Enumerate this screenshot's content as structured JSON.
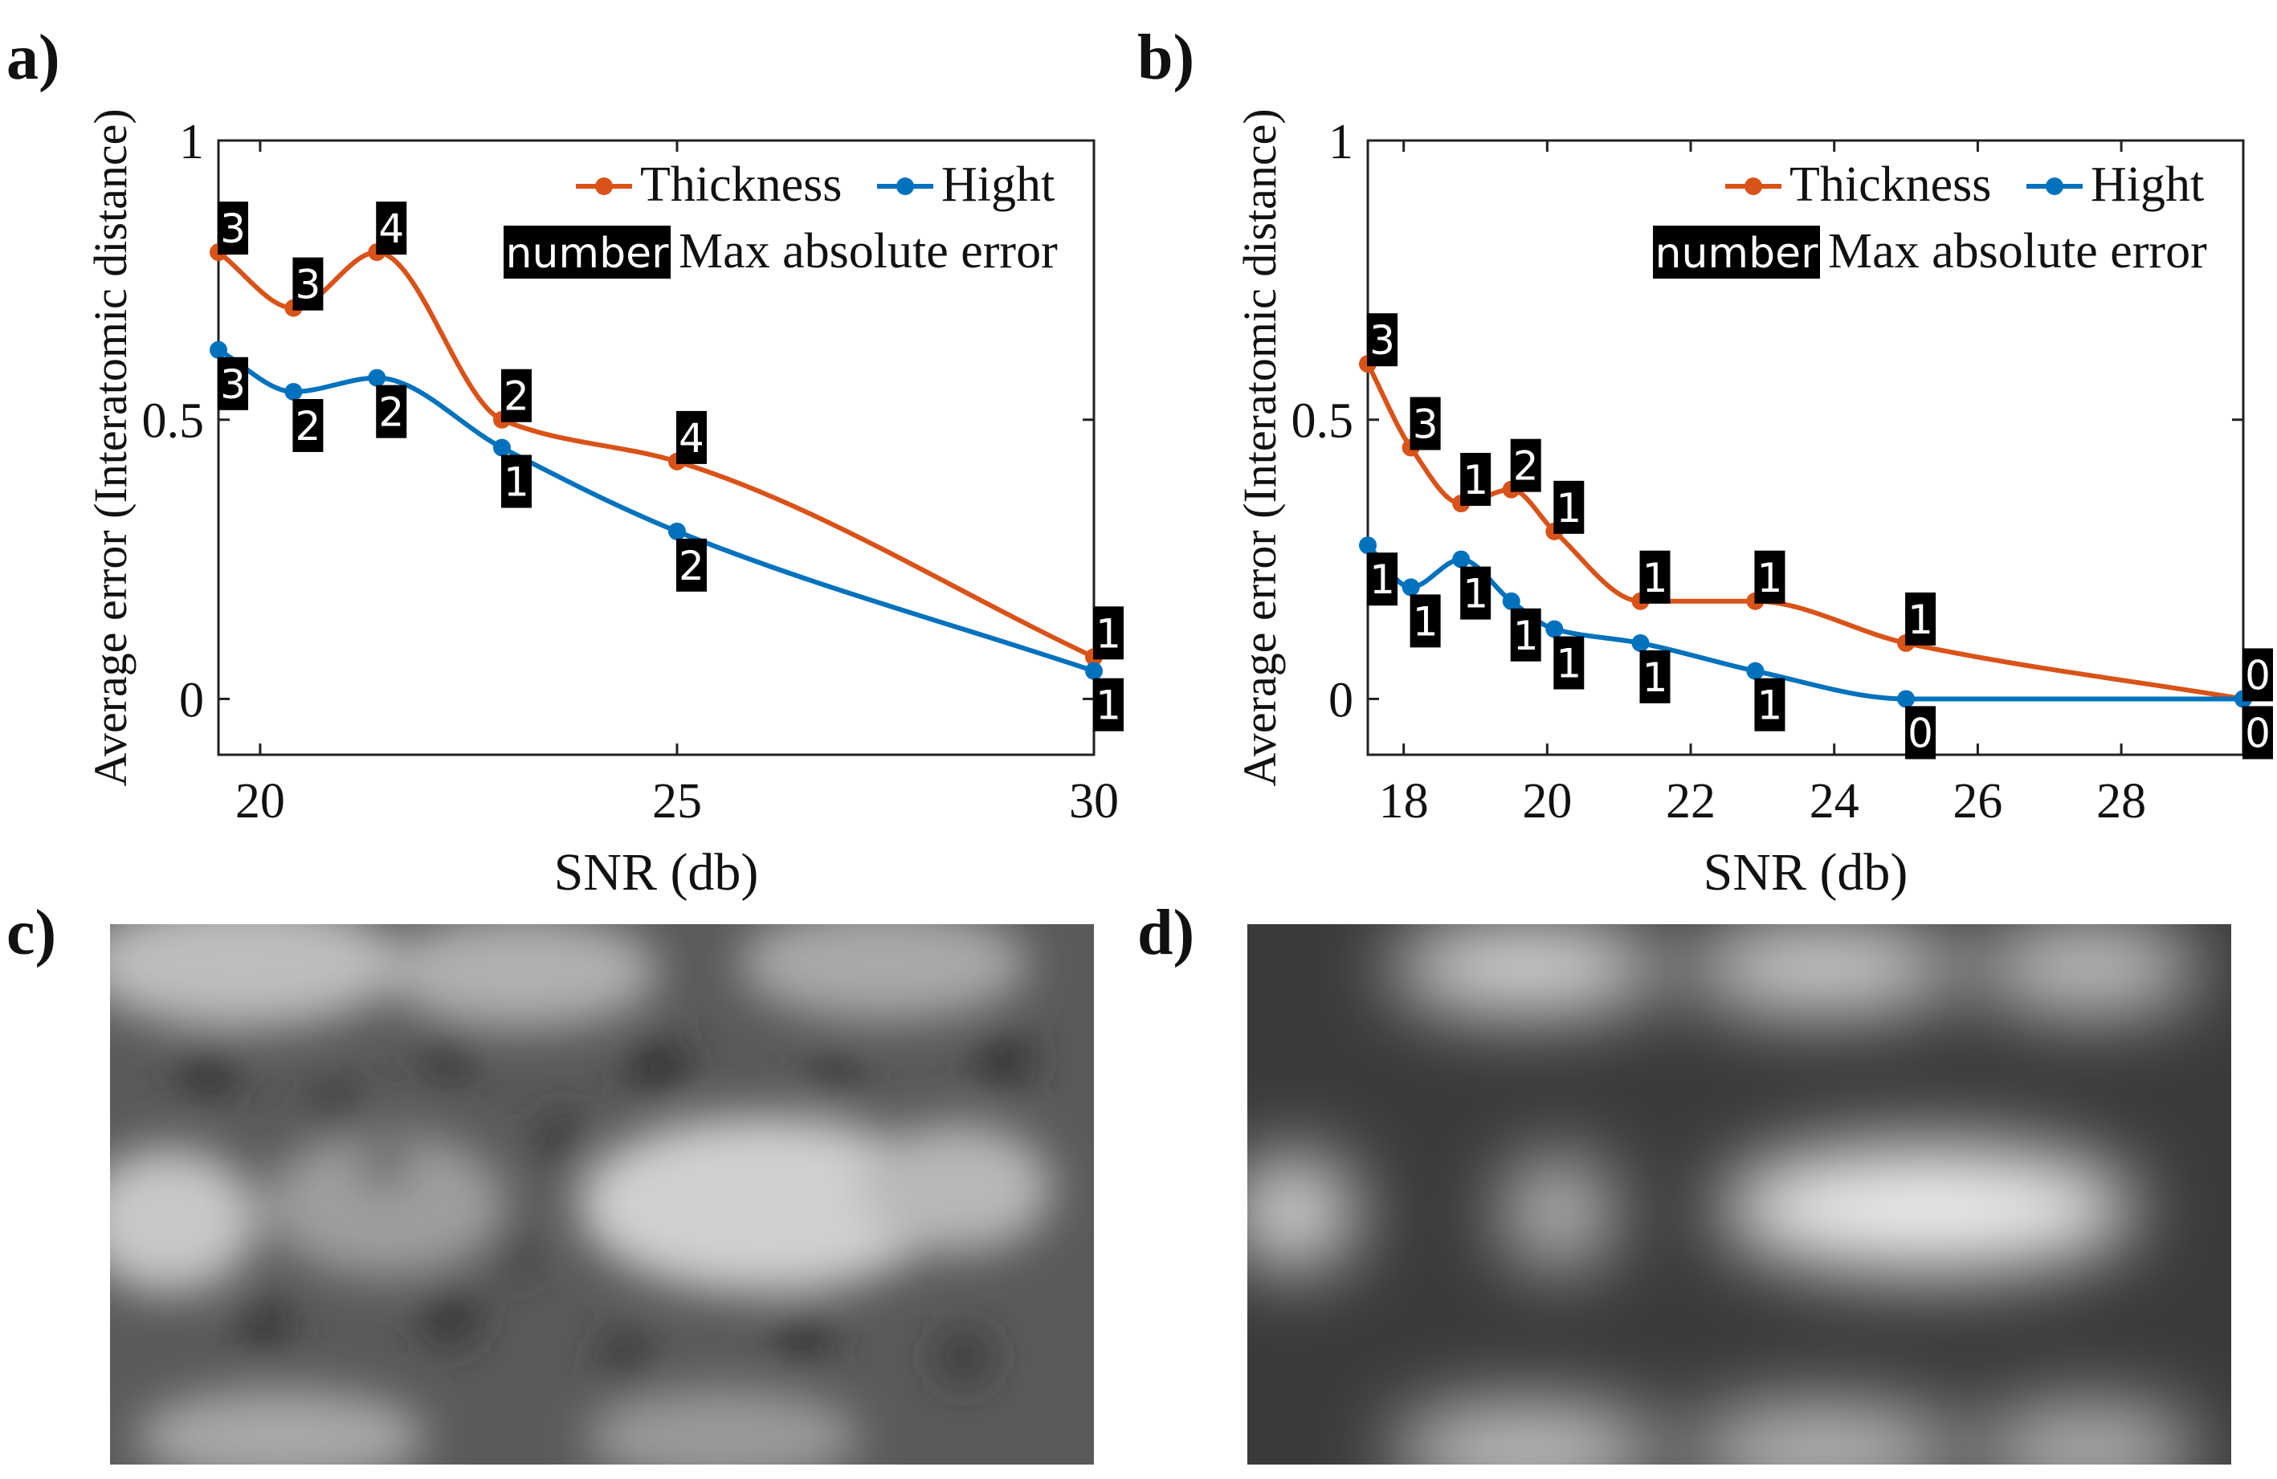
{
  "panel_labels": [
    "a)",
    "b)",
    "c)",
    "d)"
  ],
  "colors": {
    "thickness": "#D95319",
    "hight": "#0072BD",
    "badge_bg": "#000000",
    "badge_fg": "#ffffff",
    "axis": "#222222"
  },
  "chart_data": [
    {
      "type": "line",
      "panel": "a)",
      "xlabel": "SNR (db)",
      "ylabel": "Average error (Interatomic distance)",
      "xlim": [
        19.5,
        30
      ],
      "ylim": [
        -0.1,
        1
      ],
      "xticks": [
        20,
        25,
        30
      ],
      "xtick_labels": [
        "20",
        "25",
        "30"
      ],
      "yticks": [
        0,
        0.5,
        1
      ],
      "ytick_labels": [
        "0",
        "0.5",
        "1"
      ],
      "legend": {
        "placement": "top-right",
        "series": [
          "Thickness",
          "Hight"
        ],
        "badge_label": "number",
        "badge_text": "Max absolute error"
      },
      "series": [
        {
          "name": "Thickness",
          "color": "#D95319",
          "x": [
            19.5,
            20.4,
            21.4,
            22.9,
            25.0,
            30.0
          ],
          "y": [
            0.8,
            0.7,
            0.8,
            0.5,
            0.425,
            0.075
          ],
          "labels": [
            "3",
            "3",
            "4",
            "2",
            "4",
            "1"
          ]
        },
        {
          "name": "Hight",
          "color": "#0072BD",
          "x": [
            19.5,
            20.4,
            21.4,
            22.9,
            25.0,
            30.0
          ],
          "y": [
            0.625,
            0.55,
            0.575,
            0.45,
            0.3,
            0.05
          ],
          "labels": [
            "3",
            "2",
            "2",
            "1",
            "2",
            "1"
          ]
        }
      ]
    },
    {
      "type": "line",
      "panel": "b)",
      "xlabel": "SNR (db)",
      "ylabel": "Average error (Interatomic distance)",
      "xlim": [
        17.5,
        29.7
      ],
      "ylim": [
        -0.1,
        1
      ],
      "xticks": [
        18,
        20,
        22,
        24,
        26,
        28
      ],
      "xtick_labels": [
        "18",
        "20",
        "22",
        "24",
        "26",
        "28"
      ],
      "yticks": [
        0,
        0.5,
        1
      ],
      "ytick_labels": [
        "0",
        "0.5",
        "1"
      ],
      "legend": {
        "placement": "top-right",
        "series": [
          "Thickness",
          "Hight"
        ],
        "badge_label": "number",
        "badge_text": "Max absolute error"
      },
      "series": [
        {
          "name": "Thickness",
          "color": "#D95319",
          "x": [
            17.5,
            18.1,
            18.8,
            19.5,
            20.1,
            21.3,
            22.9,
            25.0,
            29.7
          ],
          "y": [
            0.6,
            0.45,
            0.35,
            0.375,
            0.3,
            0.175,
            0.175,
            0.1,
            0.0
          ],
          "labels": [
            "3",
            "3",
            "1",
            "2",
            "1",
            "1",
            "1",
            "1",
            "0"
          ]
        },
        {
          "name": "Hight",
          "color": "#0072BD",
          "x": [
            17.5,
            18.1,
            18.8,
            19.5,
            20.1,
            21.3,
            22.9,
            25.0,
            29.7
          ],
          "y": [
            0.275,
            0.2,
            0.25,
            0.175,
            0.125,
            0.1,
            0.05,
            0.0,
            0.0
          ],
          "labels": [
            "1",
            "1",
            "1",
            "1",
            "1",
            "1",
            "1",
            "0",
            "0"
          ]
        }
      ]
    }
  ]
}
